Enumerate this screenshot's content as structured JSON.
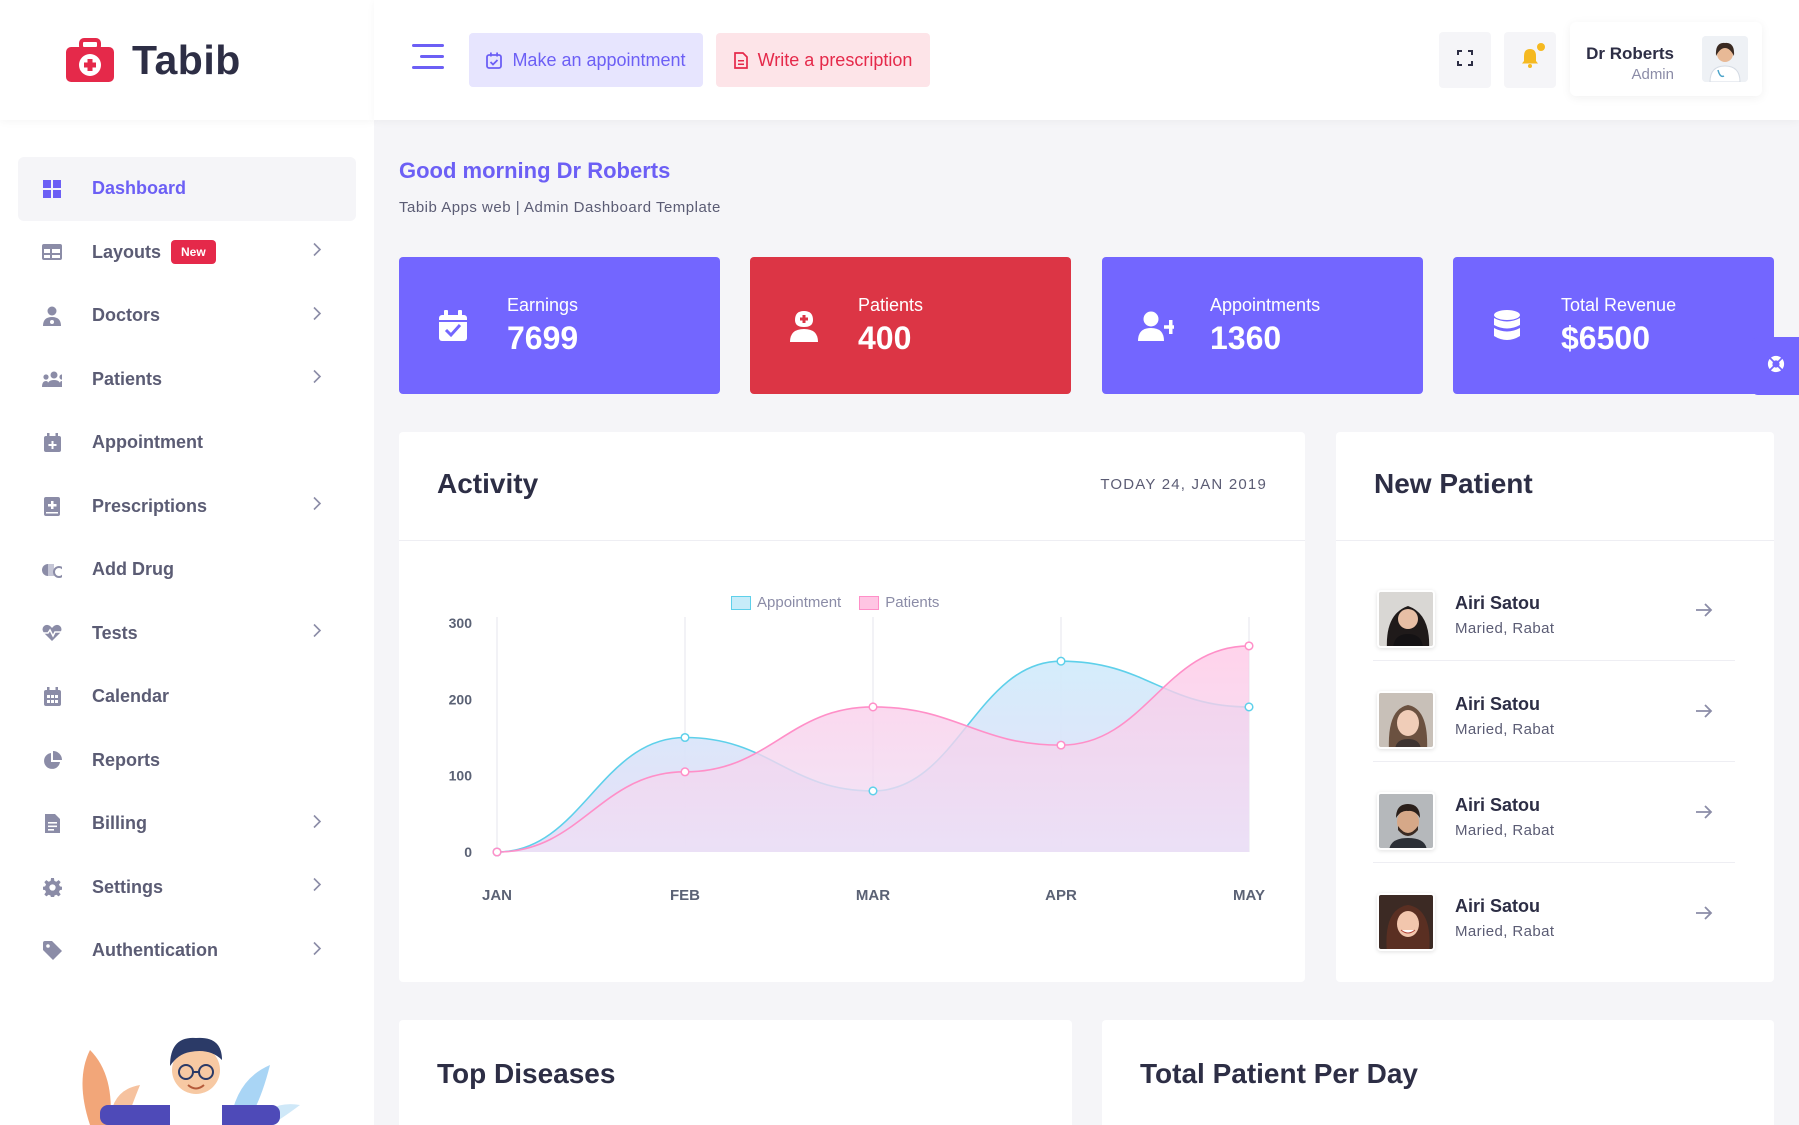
{
  "brand": {
    "name": "Tabib"
  },
  "sidebar": {
    "items": [
      {
        "label": "Dashboard",
        "icon": "dashboard-grid-icon",
        "active": true,
        "chevron": false
      },
      {
        "label": "Layouts",
        "icon": "layout-icon",
        "badge": "New",
        "chevron": true
      },
      {
        "label": "Doctors",
        "icon": "doctor-icon",
        "chevron": true
      },
      {
        "label": "Patients",
        "icon": "users-icon",
        "chevron": true
      },
      {
        "label": "Appointment",
        "icon": "calendar-plus-icon",
        "chevron": false
      },
      {
        "label": "Prescriptions",
        "icon": "medical-book-icon",
        "chevron": true
      },
      {
        "label": "Add Drug",
        "icon": "pills-icon",
        "chevron": false
      },
      {
        "label": "Tests",
        "icon": "heartbeat-icon",
        "chevron": true
      },
      {
        "label": "Calendar",
        "icon": "calendar-icon",
        "chevron": false
      },
      {
        "label": "Reports",
        "icon": "pie-chart-icon",
        "chevron": false
      },
      {
        "label": "Billing",
        "icon": "invoice-icon",
        "chevron": true
      },
      {
        "label": "Settings",
        "icon": "gear-icon",
        "chevron": true
      },
      {
        "label": "Authentication",
        "icon": "tag-icon",
        "chevron": true
      }
    ]
  },
  "topbar": {
    "appointment_button": "Make an appointment",
    "prescription_button": "Write a prescription",
    "user_name": "Dr Roberts",
    "user_role": "Admin"
  },
  "main": {
    "greeting": "Good morning Dr Roberts",
    "subtitle": "Tabib Apps web | Admin Dashboard Template"
  },
  "stats": [
    {
      "label": "Earnings",
      "value": "7699",
      "icon": "calendar-check-icon",
      "color": "#7366ff"
    },
    {
      "label": "Patients",
      "value": "400",
      "icon": "patient-icon",
      "color": "#dc3545"
    },
    {
      "label": "Appointments",
      "value": "1360",
      "icon": "user-plus-icon",
      "color": "#7366ff"
    },
    {
      "label": "Total Revenue",
      "value": "$6500",
      "icon": "database-icon",
      "color": "#7366ff"
    }
  ],
  "activity": {
    "title": "Activity",
    "date": "TODAY 24, JAN 2019"
  },
  "chart_data": {
    "type": "area",
    "categories": [
      "JAN",
      "FEB",
      "MAR",
      "APR",
      "MAY"
    ],
    "series": [
      {
        "name": "Appointment",
        "values": [
          0,
          150,
          80,
          250,
          190
        ],
        "color": "#5ed0ea"
      },
      {
        "name": "Patients",
        "values": [
          0,
          105,
          190,
          140,
          270
        ],
        "color": "#ff8fc8"
      }
    ],
    "yticks": [
      0,
      100,
      200,
      300
    ],
    "ylim": [
      0,
      300
    ],
    "legend": "top-center",
    "grid": "vertical"
  },
  "new_patient": {
    "title": "New Patient",
    "patients": [
      {
        "name": "Airi Satou",
        "sub": "Maried, Rabat"
      },
      {
        "name": "Airi Satou",
        "sub": "Maried, Rabat"
      },
      {
        "name": "Airi Satou",
        "sub": "Maried, Rabat"
      },
      {
        "name": "Airi Satou",
        "sub": "Maried, Rabat"
      }
    ]
  },
  "bottom": {
    "top_diseases_title": "Top Diseases",
    "patient_per_day_title": "Total Patient Per Day"
  }
}
